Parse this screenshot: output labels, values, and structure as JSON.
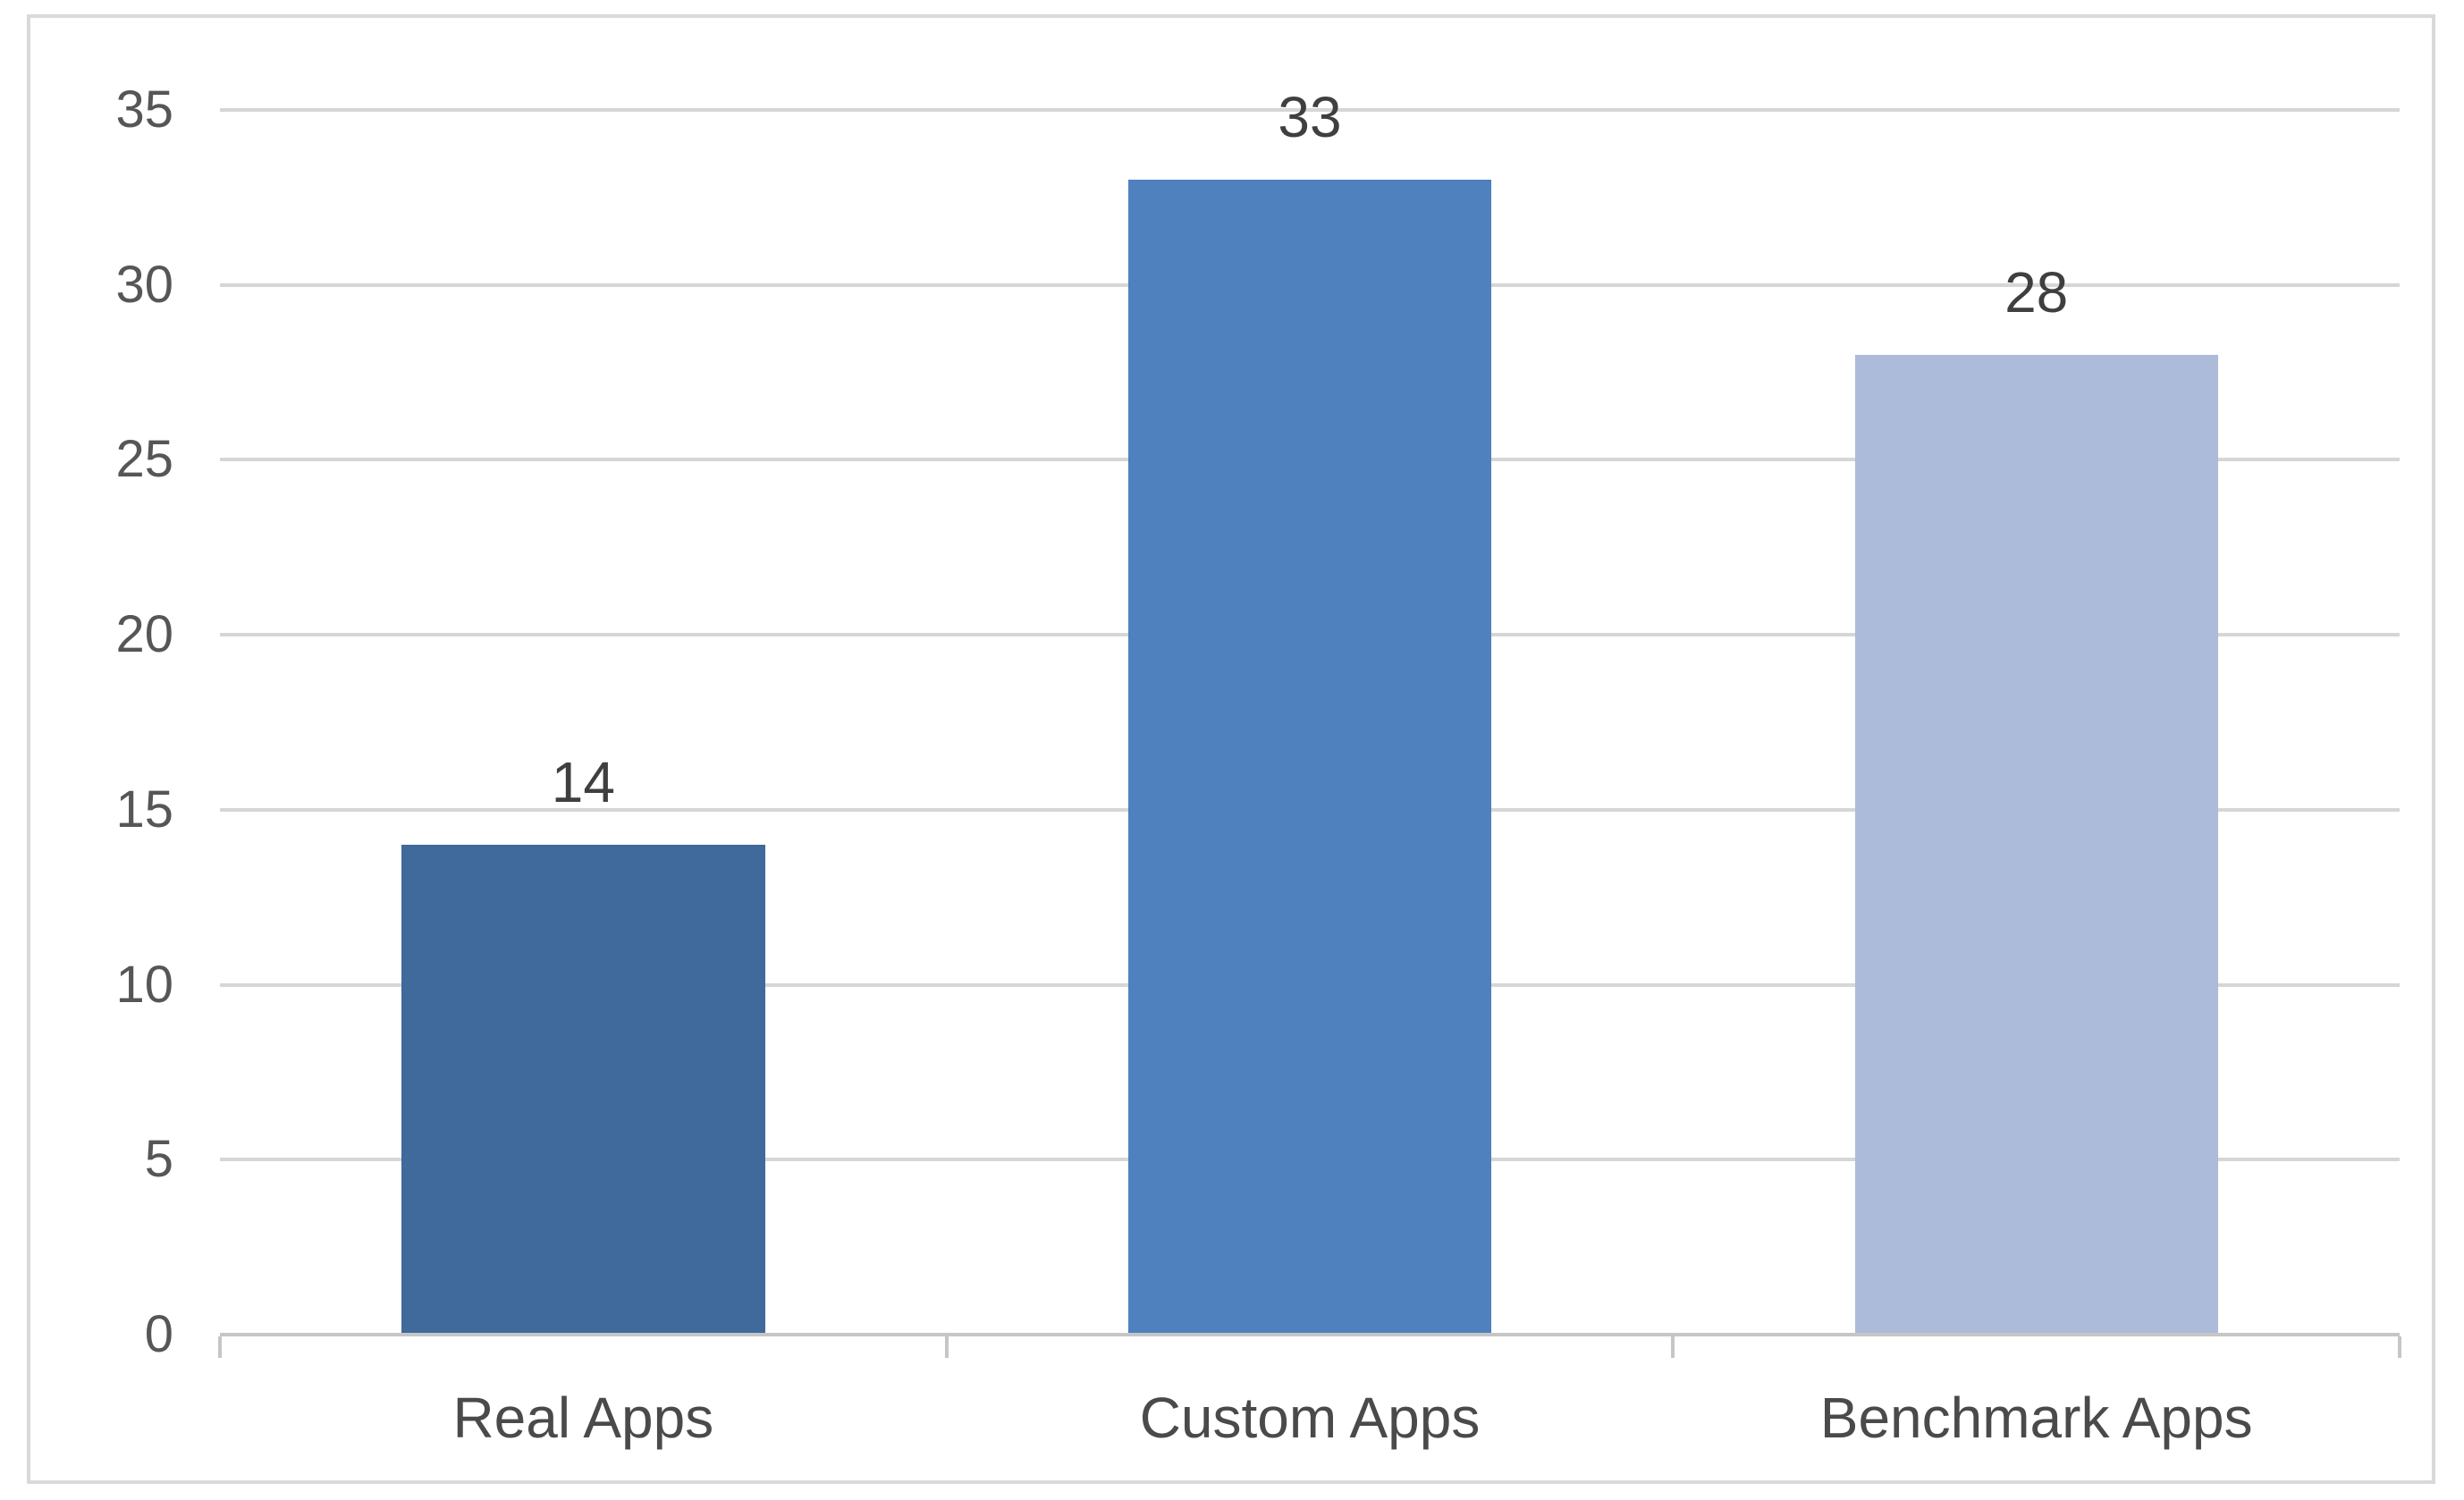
{
  "chart_data": {
    "type": "bar",
    "title": "",
    "categories": [
      "Real Apps",
      "Custom Apps",
      "Benchmark Apps"
    ],
    "values": [
      14,
      33,
      28
    ],
    "data_labels": [
      "14",
      "33",
      "28"
    ],
    "bar_colors": [
      "#3F6A9B",
      "#4E81BE",
      "#ACBBDA"
    ],
    "xlabel": "",
    "ylabel": "",
    "ylim": [
      0,
      35
    ],
    "yticks": [
      0,
      5,
      10,
      15,
      20,
      25,
      30,
      35
    ],
    "grid": "horizontal-only",
    "legend": "none",
    "bar_gap_ratio": 0.5
  },
  "colors": {
    "background": "#ffffff",
    "frame_border": "#d9d9d9",
    "gridline": "#d6d6d6",
    "axis_line": "#c6c6c6",
    "tick_label": "#565656",
    "data_label": "#3f3f3f",
    "category_label": "#4a4a4a"
  }
}
